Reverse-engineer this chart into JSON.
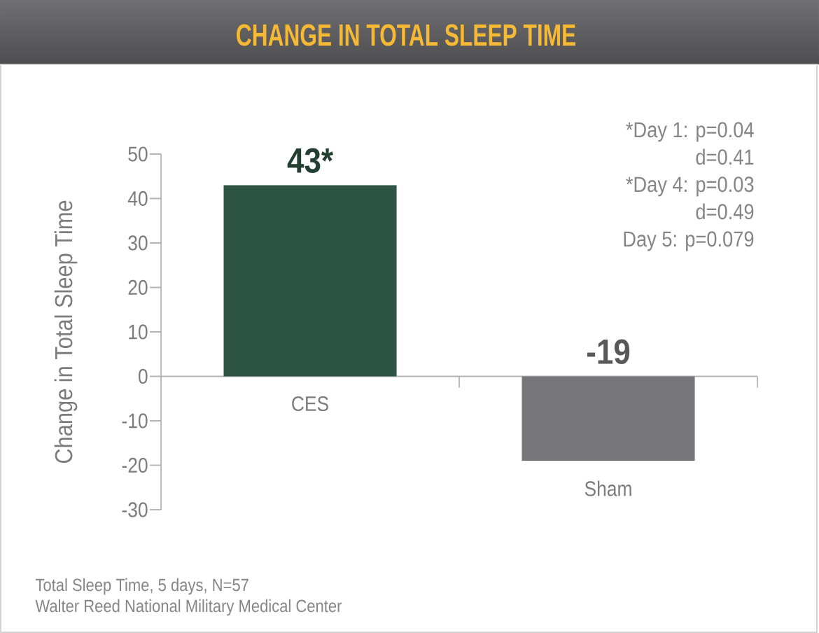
{
  "chart_data": {
    "type": "bar",
    "title": "CHANGE IN TOTAL SLEEP TIME",
    "ylabel": "Change in Total Sleep Time",
    "categories": [
      "CES",
      "Sham"
    ],
    "values": [
      43,
      -19
    ],
    "colors": [
      "#2e5443",
      "#77777a"
    ],
    "value_labels": [
      "43*",
      "-19"
    ],
    "ylim": [
      -30,
      50
    ],
    "yticks": [
      -30,
      -20,
      -10,
      0,
      10,
      20,
      30,
      40,
      50
    ],
    "annotations": [
      "*Day 1: p=0.04",
      "d=0.41",
      "*Day 4: p=0.03",
      "d=0.49",
      "Day 5: p=0.079",
      "Total Sleep Time, 5 days, N=57",
      "Walter Reed National Military Medical Center"
    ]
  }
}
